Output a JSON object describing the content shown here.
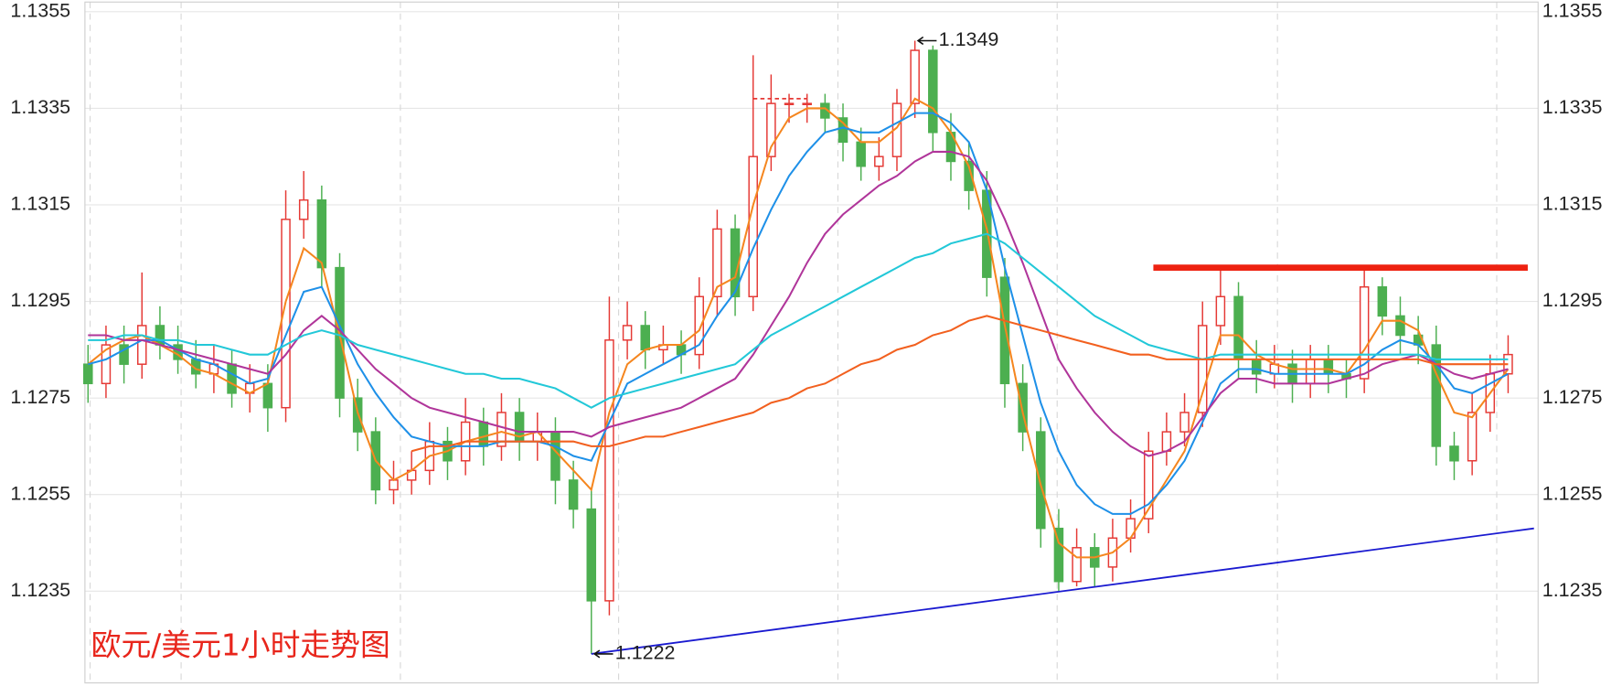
{
  "chart_data": {
    "type": "candlestick",
    "title": "欧元/美元1小时走势图",
    "up_color": "#e53935",
    "down_color": "#4caf50",
    "ylim": [
      1.1216,
      1.1357
    ],
    "yticks": [
      1.1235,
      1.1255,
      1.1275,
      1.1295,
      1.1315,
      1.1335,
      1.1355
    ],
    "grid": true,
    "open": [
      1.1282,
      1.1278,
      1.1286,
      1.1282,
      1.129,
      1.1286,
      1.1283,
      1.128,
      1.1282,
      1.1276,
      1.1278,
      1.1273,
      1.1312,
      1.1316,
      1.1302,
      1.1275,
      1.1268,
      1.1256,
      1.1258,
      1.126,
      1.1266,
      1.1262,
      1.127,
      1.1265,
      1.1272,
      1.1266,
      1.1268,
      1.1258,
      1.1252,
      1.1233,
      1.1287,
      1.129,
      1.1285,
      1.1286,
      1.1284,
      1.1296,
      1.131,
      1.1296,
      1.1325,
      1.1336,
      1.1336,
      1.1336,
      1.1333,
      1.1328,
      1.1323,
      1.1325,
      1.1336,
      1.1347,
      1.133,
      1.1324,
      1.1318,
      1.13,
      1.1278,
      1.1268,
      1.1248,
      1.1237,
      1.1244,
      1.124,
      1.1246,
      1.125,
      1.1264,
      1.1268,
      1.1272,
      1.129,
      1.1296,
      1.1283,
      1.128,
      1.1282,
      1.1278,
      1.1283,
      1.128,
      1.1279,
      1.1298,
      1.1292,
      1.1288,
      1.1286,
      1.1265,
      1.1262,
      1.1272,
      1.128
    ],
    "high": [
      1.1286,
      1.129,
      1.129,
      1.1301,
      1.1294,
      1.129,
      1.1287,
      1.1286,
      1.1285,
      1.1282,
      1.1282,
      1.1318,
      1.1322,
      1.1319,
      1.1305,
      1.1279,
      1.1271,
      1.1262,
      1.1264,
      1.127,
      1.1269,
      1.1275,
      1.1273,
      1.1276,
      1.1275,
      1.1272,
      1.1271,
      1.1262,
      1.1256,
      1.1296,
      1.1295,
      1.1293,
      1.129,
      1.1289,
      1.13,
      1.1314,
      1.1313,
      1.1346,
      1.1342,
      1.1338,
      1.1338,
      1.1338,
      1.1336,
      1.1331,
      1.1329,
      1.1339,
      1.1349,
      1.1348,
      1.1334,
      1.1328,
      1.1322,
      1.1304,
      1.1282,
      1.1271,
      1.1252,
      1.1248,
      1.1247,
      1.125,
      1.1254,
      1.1268,
      1.1272,
      1.1276,
      1.1295,
      1.1302,
      1.1299,
      1.1287,
      1.1286,
      1.1285,
      1.1286,
      1.1286,
      1.1283,
      1.1302,
      1.13,
      1.1296,
      1.1292,
      1.129,
      1.1268,
      1.1276,
      1.1284,
      1.1288
    ],
    "low": [
      1.1274,
      1.1275,
      1.1278,
      1.1279,
      1.1283,
      1.128,
      1.1277,
      1.1276,
      1.1273,
      1.1272,
      1.1268,
      1.127,
      1.1308,
      1.1298,
      1.1271,
      1.1264,
      1.1253,
      1.1253,
      1.1255,
      1.1257,
      1.1258,
      1.1259,
      1.1261,
      1.1262,
      1.1262,
      1.1262,
      1.1253,
      1.1248,
      1.1222,
      1.123,
      1.1283,
      1.1281,
      1.1282,
      1.128,
      1.1281,
      1.1292,
      1.1292,
      1.1293,
      1.1322,
      1.1332,
      1.1332,
      1.133,
      1.1324,
      1.132,
      1.132,
      1.1322,
      1.1333,
      1.1326,
      1.132,
      1.1314,
      1.1296,
      1.1273,
      1.1264,
      1.1244,
      1.1235,
      1.1236,
      1.1236,
      1.1237,
      1.1243,
      1.1247,
      1.1261,
      1.1265,
      1.1269,
      1.1286,
      1.1279,
      1.1276,
      1.1277,
      1.1274,
      1.1275,
      1.1276,
      1.1275,
      1.1276,
      1.1288,
      1.1284,
      1.1282,
      1.1261,
      1.1258,
      1.1259,
      1.1268,
      1.1276
    ],
    "close": [
      1.1278,
      1.1286,
      1.1282,
      1.129,
      1.1286,
      1.1283,
      1.128,
      1.1282,
      1.1276,
      1.1278,
      1.1273,
      1.1312,
      1.1316,
      1.1302,
      1.1275,
      1.1268,
      1.1256,
      1.1258,
      1.126,
      1.1266,
      1.1262,
      1.127,
      1.1265,
      1.1272,
      1.1266,
      1.1268,
      1.1258,
      1.1252,
      1.1233,
      1.1287,
      1.129,
      1.1285,
      1.1286,
      1.1284,
      1.1296,
      1.131,
      1.1296,
      1.1325,
      1.1336,
      1.1336,
      1.1336,
      1.1333,
      1.1328,
      1.1323,
      1.1325,
      1.1336,
      1.1347,
      1.133,
      1.1324,
      1.1318,
      1.13,
      1.1278,
      1.1268,
      1.1248,
      1.1237,
      1.1244,
      1.124,
      1.1246,
      1.125,
      1.1264,
      1.1268,
      1.1272,
      1.129,
      1.1296,
      1.1283,
      1.128,
      1.1282,
      1.1278,
      1.1283,
      1.128,
      1.1279,
      1.1298,
      1.1292,
      1.1288,
      1.1286,
      1.1265,
      1.1262,
      1.1272,
      1.128,
      1.1284
    ],
    "series": [
      {
        "color": "#f5861f",
        "values": [
          1.1282,
          1.1285,
          1.1287,
          1.1288,
          1.1286,
          1.1284,
          1.1281,
          1.128,
          1.1278,
          1.1276,
          1.1278,
          1.1295,
          1.1306,
          1.1303,
          1.1288,
          1.1272,
          1.1262,
          1.1258,
          1.126,
          1.1263,
          1.1264,
          1.1266,
          1.1267,
          1.1268,
          1.1267,
          1.1268,
          1.1264,
          1.126,
          1.1256,
          1.1272,
          1.1282,
          1.1285,
          1.1286,
          1.1286,
          1.1289,
          1.1298,
          1.13,
          1.1315,
          1.1327,
          1.1333,
          1.1335,
          1.1335,
          1.1332,
          1.1328,
          1.1328,
          1.1331,
          1.1337,
          1.1335,
          1.133,
          1.1323,
          1.131,
          1.129,
          1.1272,
          1.1257,
          1.1245,
          1.1242,
          1.1242,
          1.1243,
          1.1246,
          1.1252,
          1.1258,
          1.1264,
          1.1276,
          1.1288,
          1.1288,
          1.1284,
          1.1282,
          1.1281,
          1.1281,
          1.1281,
          1.128,
          1.1285,
          1.1291,
          1.1291,
          1.1289,
          1.128,
          1.1272,
          1.1271,
          1.1276,
          1.1281
        ]
      },
      {
        "color": "#1e90e8",
        "values": [
          1.1282,
          1.1283,
          1.1285,
          1.1287,
          1.1287,
          1.1285,
          1.1283,
          1.1282,
          1.128,
          1.1278,
          1.1279,
          1.1288,
          1.1297,
          1.1298,
          1.129,
          1.1282,
          1.1276,
          1.1271,
          1.1267,
          1.1266,
          1.1265,
          1.1265,
          1.1265,
          1.1266,
          1.1266,
          1.1266,
          1.1265,
          1.1263,
          1.1262,
          1.127,
          1.1278,
          1.128,
          1.1282,
          1.1284,
          1.1286,
          1.1292,
          1.1297,
          1.1306,
          1.1314,
          1.1321,
          1.1326,
          1.133,
          1.1331,
          1.133,
          1.133,
          1.1332,
          1.1334,
          1.1334,
          1.1332,
          1.1328,
          1.1318,
          1.1302,
          1.1288,
          1.1274,
          1.1264,
          1.1257,
          1.1253,
          1.1251,
          1.1251,
          1.1253,
          1.1257,
          1.1262,
          1.127,
          1.1278,
          1.1281,
          1.1281,
          1.128,
          1.128,
          1.128,
          1.128,
          1.128,
          1.1282,
          1.1285,
          1.1287,
          1.1286,
          1.1282,
          1.1277,
          1.1276,
          1.1278,
          1.128
        ]
      },
      {
        "color": "#b0359a",
        "values": [
          1.1288,
          1.1288,
          1.1287,
          1.1287,
          1.1286,
          1.1285,
          1.1284,
          1.1283,
          1.1282,
          1.1281,
          1.128,
          1.1284,
          1.1289,
          1.1292,
          1.1289,
          1.1285,
          1.1281,
          1.1278,
          1.1275,
          1.1273,
          1.1272,
          1.1271,
          1.127,
          1.1269,
          1.1268,
          1.1268,
          1.1268,
          1.1268,
          1.1267,
          1.1269,
          1.127,
          1.1271,
          1.1272,
          1.1273,
          1.1275,
          1.1277,
          1.1279,
          1.1284,
          1.129,
          1.1296,
          1.1303,
          1.1309,
          1.1313,
          1.1316,
          1.1319,
          1.1321,
          1.1324,
          1.1326,
          1.1326,
          1.1325,
          1.132,
          1.1312,
          1.1303,
          1.1293,
          1.1283,
          1.1277,
          1.1272,
          1.1268,
          1.1265,
          1.1263,
          1.1264,
          1.1266,
          1.1271,
          1.1276,
          1.1279,
          1.1279,
          1.1278,
          1.1278,
          1.1278,
          1.1278,
          1.1279,
          1.128,
          1.1282,
          1.1283,
          1.1284,
          1.1282,
          1.128,
          1.1279,
          1.128,
          1.1281
        ]
      },
      {
        "color": "#22c8d8",
        "values": [
          1.1287,
          1.1287,
          1.1288,
          1.1288,
          1.1287,
          1.1287,
          1.1286,
          1.1286,
          1.1285,
          1.1284,
          1.1284,
          1.1286,
          1.1288,
          1.1289,
          1.1288,
          1.1286,
          1.1285,
          1.1284,
          1.1283,
          1.1282,
          1.1281,
          1.128,
          1.128,
          1.1279,
          1.1279,
          1.1278,
          1.1277,
          1.1275,
          1.1273,
          1.1275,
          1.1276,
          1.1277,
          1.1278,
          1.1279,
          1.128,
          1.1281,
          1.1282,
          1.1285,
          1.1288,
          1.129,
          1.1292,
          1.1294,
          1.1296,
          1.1298,
          1.13,
          1.1302,
          1.1304,
          1.1305,
          1.1307,
          1.1308,
          1.1309,
          1.1307,
          1.1304,
          1.1301,
          1.1298,
          1.1295,
          1.1292,
          1.129,
          1.1288,
          1.1286,
          1.1285,
          1.1284,
          1.1283,
          1.1284,
          1.1284,
          1.1284,
          1.1284,
          1.1284,
          1.1284,
          1.1284,
          1.1284,
          1.1284,
          1.1284,
          1.1284,
          1.1284,
          1.1283,
          1.1283,
          1.1283,
          1.1283,
          1.1283
        ]
      },
      {
        "color": "#f2601f",
        "values": [
          null,
          null,
          null,
          null,
          null,
          null,
          null,
          null,
          null,
          null,
          null,
          null,
          null,
          null,
          null,
          null,
          null,
          null,
          1.1264,
          1.1265,
          1.1265,
          1.1266,
          1.1266,
          1.1266,
          1.1266,
          1.1266,
          1.1266,
          1.1266,
          1.1265,
          1.1265,
          1.1266,
          1.1267,
          1.1267,
          1.1268,
          1.1269,
          1.127,
          1.1271,
          1.1272,
          1.1274,
          1.1275,
          1.1277,
          1.1278,
          1.128,
          1.1282,
          1.1283,
          1.1285,
          1.1286,
          1.1288,
          1.1289,
          1.1291,
          1.1292,
          1.1291,
          1.129,
          1.1289,
          1.1288,
          1.1287,
          1.1286,
          1.1285,
          1.1284,
          1.1284,
          1.1283,
          1.1283,
          1.1283,
          1.1283,
          1.1283,
          1.1283,
          1.1283,
          1.1283,
          1.1283,
          1.1283,
          1.1283,
          1.1283,
          1.1283,
          1.1283,
          1.1283,
          1.1282,
          1.1282,
          1.1282,
          1.1282,
          1.1282
        ]
      }
    ],
    "annotations": [
      1.1349,
      1.1222
    ],
    "resistance": {
      "value": 1.1302,
      "color": "#ee2211"
    },
    "dashed_level": {
      "value": 1.1337,
      "color": "#e53935"
    },
    "trendline": {
      "values": [
        1.1222,
        1.1248
      ],
      "color": "#1a1ad0"
    }
  }
}
